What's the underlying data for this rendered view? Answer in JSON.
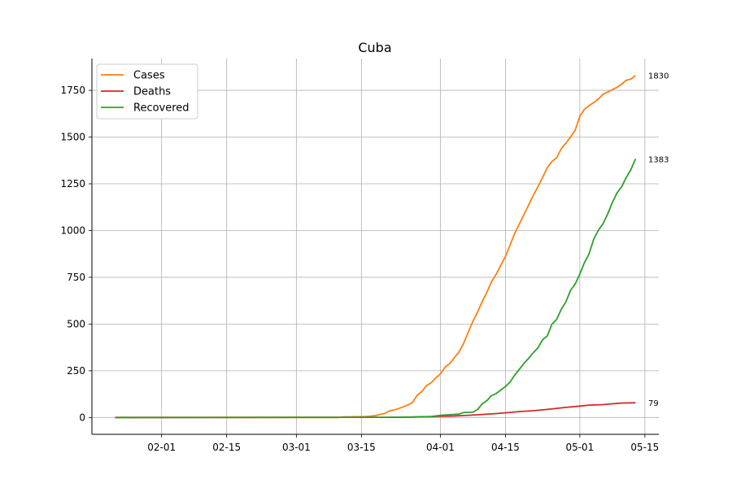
{
  "chart_data": {
    "type": "line",
    "title": "Cuba",
    "xlabel": "",
    "ylabel": "",
    "x_start": "2020-01-22",
    "x_end": "2020-05-14",
    "xlim": [
      "2020-01-17",
      "2020-05-18"
    ],
    "ylim": [
      -90,
      1920
    ],
    "x_ticks": [
      {
        "date": "2020-02-01",
        "label": "02-01"
      },
      {
        "date": "2020-02-15",
        "label": "02-15"
      },
      {
        "date": "2020-03-01",
        "label": "03-01"
      },
      {
        "date": "2020-03-15",
        "label": "03-15"
      },
      {
        "date": "2020-04-01",
        "label": "04-01"
      },
      {
        "date": "2020-04-15",
        "label": "04-15"
      },
      {
        "date": "2020-05-01",
        "label": "05-01"
      },
      {
        "date": "2020-05-15",
        "label": "05-15"
      }
    ],
    "y_ticks": [
      0,
      250,
      500,
      750,
      1000,
      1250,
      1500,
      1750
    ],
    "grid": true,
    "legend_position": "top-left",
    "series": [
      {
        "name": "Cases",
        "color": "#ff7f0e",
        "end_label": "1830",
        "points": [
          [
            "2020-01-22",
            0
          ],
          [
            "2020-03-10",
            0
          ],
          [
            "2020-03-11",
            3
          ],
          [
            "2020-03-14",
            4
          ],
          [
            "2020-03-16",
            5
          ],
          [
            "2020-03-17",
            7
          ],
          [
            "2020-03-18",
            10
          ],
          [
            "2020-03-19",
            16
          ],
          [
            "2020-03-20",
            21
          ],
          [
            "2020-03-21",
            35
          ],
          [
            "2020-03-22",
            40
          ],
          [
            "2020-03-23",
            48
          ],
          [
            "2020-03-24",
            57
          ],
          [
            "2020-03-25",
            67
          ],
          [
            "2020-03-26",
            80
          ],
          [
            "2020-03-27",
            119
          ],
          [
            "2020-03-28",
            139
          ],
          [
            "2020-03-29",
            170
          ],
          [
            "2020-03-30",
            186
          ],
          [
            "2020-03-31",
            212
          ],
          [
            "2020-04-01",
            233
          ],
          [
            "2020-04-02",
            269
          ],
          [
            "2020-04-03",
            288
          ],
          [
            "2020-04-04",
            320
          ],
          [
            "2020-04-05",
            350
          ],
          [
            "2020-04-06",
            396
          ],
          [
            "2020-04-07",
            457
          ],
          [
            "2020-04-08",
            515
          ],
          [
            "2020-04-09",
            564
          ],
          [
            "2020-04-10",
            620
          ],
          [
            "2020-04-11",
            669
          ],
          [
            "2020-04-12",
            726
          ],
          [
            "2020-04-13",
            766
          ],
          [
            "2020-04-14",
            814
          ],
          [
            "2020-04-15",
            862
          ],
          [
            "2020-04-16",
            923
          ],
          [
            "2020-04-17",
            986
          ],
          [
            "2020-04-18",
            1035
          ],
          [
            "2020-04-19",
            1087
          ],
          [
            "2020-04-20",
            1137
          ],
          [
            "2020-04-21",
            1189
          ],
          [
            "2020-04-22",
            1235
          ],
          [
            "2020-04-23",
            1285
          ],
          [
            "2020-04-24",
            1337
          ],
          [
            "2020-04-25",
            1369
          ],
          [
            "2020-04-26",
            1389
          ],
          [
            "2020-04-27",
            1437
          ],
          [
            "2020-04-28",
            1467
          ],
          [
            "2020-04-29",
            1501
          ],
          [
            "2020-04-30",
            1537
          ],
          [
            "2020-05-01",
            1611
          ],
          [
            "2020-05-02",
            1649
          ],
          [
            "2020-05-03",
            1668
          ],
          [
            "2020-05-04",
            1685
          ],
          [
            "2020-05-05",
            1703
          ],
          [
            "2020-05-06",
            1729
          ],
          [
            "2020-05-07",
            1741
          ],
          [
            "2020-05-08",
            1754
          ],
          [
            "2020-05-09",
            1766
          ],
          [
            "2020-05-10",
            1783
          ],
          [
            "2020-05-11",
            1804
          ],
          [
            "2020-05-12",
            1810
          ],
          [
            "2020-05-13",
            1830
          ]
        ]
      },
      {
        "name": "Deaths",
        "color": "#d62728",
        "end_label": "79",
        "points": [
          [
            "2020-01-22",
            0
          ],
          [
            "2020-03-17",
            1
          ],
          [
            "2020-03-22",
            1
          ],
          [
            "2020-03-26",
            2
          ],
          [
            "2020-03-29",
            4
          ],
          [
            "2020-04-01",
            6
          ],
          [
            "2020-04-04",
            8
          ],
          [
            "2020-04-07",
            12
          ],
          [
            "2020-04-10",
            16
          ],
          [
            "2020-04-13",
            21
          ],
          [
            "2020-04-16",
            27
          ],
          [
            "2020-04-18",
            32
          ],
          [
            "2020-04-21",
            36
          ],
          [
            "2020-04-24",
            43
          ],
          [
            "2020-04-26",
            49
          ],
          [
            "2020-04-28",
            54
          ],
          [
            "2020-05-01",
            61
          ],
          [
            "2020-05-03",
            66
          ],
          [
            "2020-05-06",
            69
          ],
          [
            "2020-05-08",
            73
          ],
          [
            "2020-05-10",
            77
          ],
          [
            "2020-05-13",
            79
          ]
        ]
      },
      {
        "name": "Recovered",
        "color": "#2ca02c",
        "end_label": "1383",
        "points": [
          [
            "2020-01-22",
            0
          ],
          [
            "2020-03-20",
            1
          ],
          [
            "2020-03-26",
            3
          ],
          [
            "2020-03-30",
            5
          ],
          [
            "2020-04-01",
            12
          ],
          [
            "2020-04-03",
            15
          ],
          [
            "2020-04-05",
            18
          ],
          [
            "2020-04-06",
            27
          ],
          [
            "2020-04-08",
            28
          ],
          [
            "2020-04-09",
            43
          ],
          [
            "2020-04-10",
            73
          ],
          [
            "2020-04-11",
            90
          ],
          [
            "2020-04-12",
            117
          ],
          [
            "2020-04-13",
            128
          ],
          [
            "2020-04-14",
            147
          ],
          [
            "2020-04-15",
            166
          ],
          [
            "2020-04-16",
            190
          ],
          [
            "2020-04-17",
            227
          ],
          [
            "2020-04-18",
            258
          ],
          [
            "2020-04-19",
            290
          ],
          [
            "2020-04-20",
            317
          ],
          [
            "2020-04-21",
            347
          ],
          [
            "2020-04-22",
            373
          ],
          [
            "2020-04-23",
            416
          ],
          [
            "2020-04-24",
            437
          ],
          [
            "2020-04-25",
            499
          ],
          [
            "2020-04-26",
            524
          ],
          [
            "2020-04-27",
            578
          ],
          [
            "2020-04-28",
            618
          ],
          [
            "2020-04-29",
            680
          ],
          [
            "2020-04-30",
            714
          ],
          [
            "2020-05-01",
            767
          ],
          [
            "2020-05-02",
            829
          ],
          [
            "2020-05-03",
            876
          ],
          [
            "2020-05-04",
            954
          ],
          [
            "2020-05-05",
            1002
          ],
          [
            "2020-05-06",
            1036
          ],
          [
            "2020-05-07",
            1089
          ],
          [
            "2020-05-08",
            1150
          ],
          [
            "2020-05-09",
            1201
          ],
          [
            "2020-05-10",
            1234
          ],
          [
            "2020-05-11",
            1284
          ],
          [
            "2020-05-12",
            1326
          ],
          [
            "2020-05-13",
            1383
          ]
        ]
      }
    ]
  }
}
